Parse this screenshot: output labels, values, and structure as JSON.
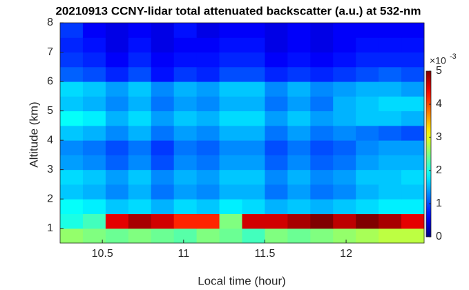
{
  "chart_data": {
    "type": "heatmap",
    "title": "20210913 CCNY-lidar total attenuated backscatter (a.u.) at 532-nm",
    "xlabel": "Local time (hour)",
    "ylabel": "Altitude (km)",
    "xlim": [
      10.24,
      12.48
    ],
    "ylim": [
      0.5,
      8
    ],
    "xticks": [
      10.5,
      11,
      11.5,
      12
    ],
    "yticks": [
      1,
      2,
      3,
      4,
      5,
      6,
      7,
      8
    ],
    "colormap": "jet",
    "clim": [
      0,
      5
    ],
    "cticks": [
      0,
      1,
      2,
      3,
      4,
      5
    ],
    "colorbar_multiplier": "×10",
    "colorbar_exponent": "-3",
    "x_bins": [
      10.24,
      10.38,
      10.52,
      10.66,
      10.8,
      10.94,
      11.08,
      11.22,
      11.36,
      11.5,
      11.64,
      11.78,
      11.92,
      12.06,
      12.2,
      12.34,
      12.48
    ],
    "y_bins": [
      0.5,
      1,
      1.5,
      2,
      2.5,
      3,
      3.5,
      4,
      4.5,
      5,
      5.5,
      6,
      6.5,
      7,
      7.5,
      8
    ],
    "z": [
      [
        2.6,
        2.5,
        2.4,
        2.5,
        2.4,
        2.3,
        2.5,
        2.4,
        2.2,
        2.5,
        2.4,
        2.5,
        2.6,
        2.7,
        2.8,
        2.8
      ],
      [
        2.0,
        2.2,
        4.5,
        4.8,
        4.6,
        4.2,
        4.2,
        2.5,
        4.6,
        4.6,
        4.8,
        5,
        4.7,
        5,
        4.8,
        4.5
      ],
      [
        1.9,
        1.8,
        1.6,
        1.7,
        1.5,
        1.7,
        1.6,
        1.8,
        1.7,
        1.5,
        1.6,
        1.5,
        1.6,
        1.7,
        1.8,
        1.8
      ],
      [
        1.6,
        1.5,
        1.3,
        1.5,
        1.2,
        1.4,
        1.3,
        1.5,
        1.5,
        1.2,
        1.4,
        1.2,
        1.3,
        1.5,
        1.6,
        1.6
      ],
      [
        1.7,
        1.6,
        1.4,
        1.6,
        1.3,
        1.5,
        1.4,
        1.6,
        1.6,
        1.3,
        1.5,
        1.3,
        1.4,
        1.6,
        1.6,
        1.7
      ],
      [
        1.4,
        1.3,
        1.1,
        1.3,
        1.0,
        1.3,
        1.2,
        1.4,
        1.4,
        1.1,
        1.3,
        1.1,
        1.2,
        1.4,
        1.5,
        1.5
      ],
      [
        1.3,
        1.2,
        1.0,
        1.2,
        0.9,
        1.2,
        1.1,
        1.3,
        1.3,
        1.0,
        1.2,
        1.0,
        1.1,
        1.3,
        1.4,
        1.4
      ],
      [
        1.6,
        1.5,
        1.3,
        1.5,
        1.2,
        1.4,
        1.3,
        1.5,
        1.5,
        1.2,
        1.4,
        1.2,
        1.3,
        1.2,
        1.1,
        1.0
      ],
      [
        1.9,
        1.8,
        1.5,
        1.7,
        1.4,
        1.6,
        1.5,
        1.7,
        1.7,
        1.4,
        1.6,
        1.4,
        1.5,
        1.6,
        1.6,
        1.5
      ],
      [
        1.6,
        1.5,
        1.3,
        1.5,
        1.2,
        1.4,
        1.3,
        1.5,
        1.5,
        1.2,
        1.4,
        1.2,
        1.5,
        1.6,
        1.7,
        1.7
      ],
      [
        1.7,
        1.6,
        1.4,
        1.6,
        1.3,
        1.5,
        1.4,
        1.6,
        1.6,
        1.3,
        1.5,
        1.3,
        1.4,
        1.5,
        1.5,
        1.4
      ],
      [
        1.1,
        1.0,
        0.8,
        1.0,
        0.7,
        0.9,
        0.8,
        1.0,
        1.0,
        0.8,
        0.9,
        0.8,
        0.9,
        1.0,
        1.1,
        1.0
      ],
      [
        0.9,
        0.8,
        0.6,
        0.8,
        0.6,
        0.7,
        0.7,
        0.8,
        0.8,
        0.6,
        0.7,
        0.6,
        0.7,
        0.8,
        0.8,
        0.8
      ],
      [
        0.8,
        0.7,
        0.5,
        0.7,
        0.5,
        0.6,
        0.6,
        0.7,
        0.7,
        0.5,
        0.6,
        0.5,
        0.6,
        0.7,
        0.7,
        0.7
      ],
      [
        0.9,
        0.6,
        0.5,
        0.6,
        0.5,
        0.7,
        0.5,
        0.6,
        0.6,
        0.5,
        0.6,
        0.5,
        0.6,
        0.6,
        0.6,
        0.6
      ]
    ]
  }
}
